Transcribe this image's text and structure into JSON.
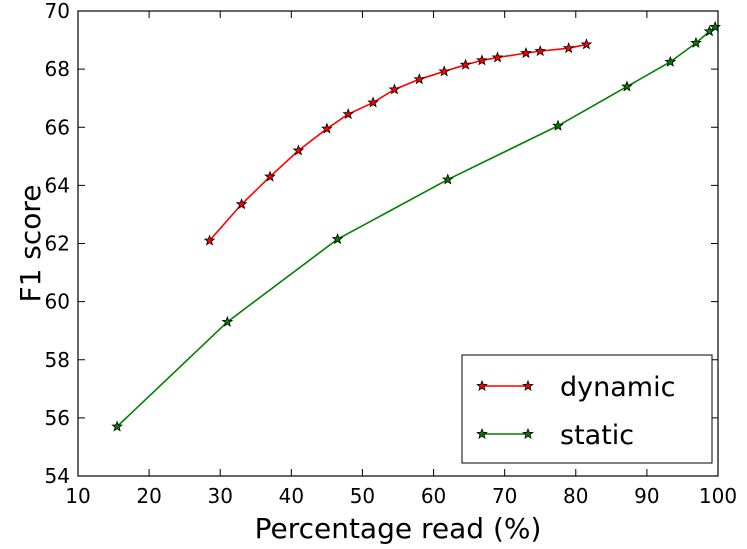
{
  "chart_data": {
    "type": "line",
    "title": "",
    "xlabel": "Percentage read (%)",
    "ylabel": "F1 score",
    "xlim": [
      10,
      100
    ],
    "ylim": [
      54,
      70
    ],
    "xticks": [
      "10",
      "20",
      "30",
      "40",
      "50",
      "60",
      "70",
      "80",
      "90",
      "100"
    ],
    "yticks": [
      "54",
      "56",
      "58",
      "60",
      "62",
      "64",
      "66",
      "68",
      "70"
    ],
    "grid": false,
    "legend_position": "bottom-right",
    "series": [
      {
        "name": "dynamic",
        "color": "#ff0000",
        "marker": "star",
        "points": [
          [
            28.5,
            62.1
          ],
          [
            33.0,
            63.35
          ],
          [
            37.0,
            64.3
          ],
          [
            41.0,
            65.2
          ],
          [
            45.0,
            65.95
          ],
          [
            48.0,
            66.45
          ],
          [
            51.5,
            66.85
          ],
          [
            54.5,
            67.3
          ],
          [
            58.0,
            67.65
          ],
          [
            61.5,
            67.92
          ],
          [
            64.5,
            68.15
          ],
          [
            66.8,
            68.3
          ],
          [
            69.0,
            68.4
          ],
          [
            73.0,
            68.55
          ],
          [
            75.0,
            68.62
          ],
          [
            79.0,
            68.72
          ],
          [
            81.5,
            68.85
          ]
        ]
      },
      {
        "name": "static",
        "color": "#008000",
        "marker": "star",
        "points": [
          [
            15.5,
            55.7
          ],
          [
            31.0,
            59.3
          ],
          [
            46.5,
            62.15
          ],
          [
            62.0,
            64.2
          ],
          [
            77.5,
            66.05
          ],
          [
            87.2,
            67.4
          ],
          [
            93.3,
            68.25
          ],
          [
            96.9,
            68.9
          ],
          [
            98.8,
            69.3
          ],
          [
            99.6,
            69.45
          ]
        ]
      }
    ]
  }
}
